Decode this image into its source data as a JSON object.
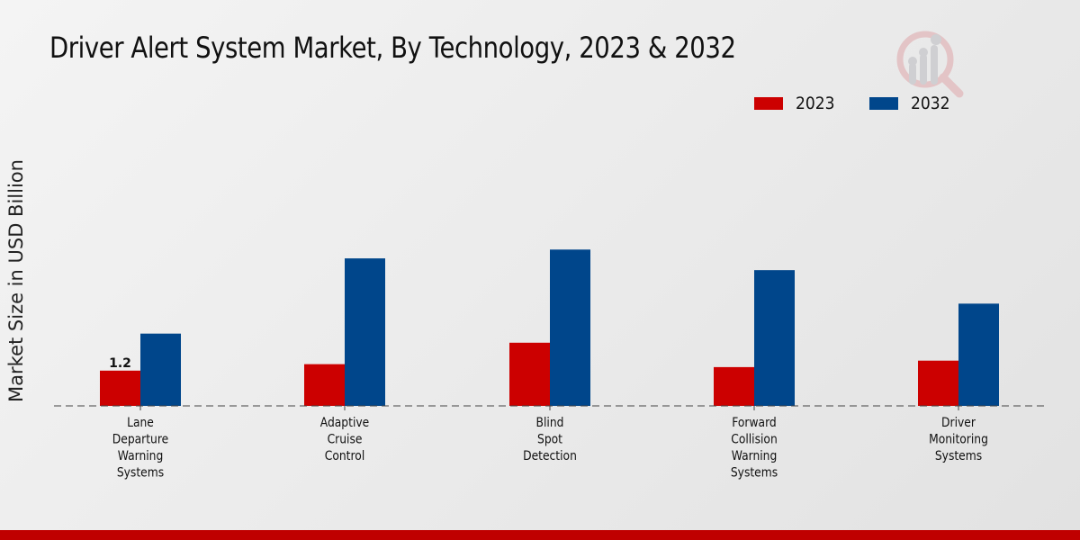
{
  "title": "Driver Alert System Market, By Technology, 2023 & 2032",
  "colors": {
    "series_2023": "#cc0000",
    "series_2032": "#00468b",
    "footer": "#bf0000"
  },
  "chart_data": {
    "type": "bar",
    "title": "Driver Alert System Market, By Technology, 2023 & 2032",
    "xlabel": "",
    "ylabel": "Market Size in USD Billion",
    "categories": [
      [
        "Lane",
        "Departure",
        "Warning",
        "Systems"
      ],
      [
        "Adaptive",
        "Cruise",
        "Control"
      ],
      [
        "Blind",
        "Spot",
        "Detection"
      ],
      [
        "Forward",
        "Collision",
        "Warning",
        "Systems"
      ],
      [
        "Driver",
        "Monitoring",
        "Systems"
      ]
    ],
    "category_names": [
      "Lane Departure Warning Systems",
      "Adaptive Cruise Control",
      "Blind Spot Detection",
      "Forward Collision Warning Systems",
      "Driver Monitoring Systems"
    ],
    "series": [
      {
        "name": "2023",
        "color": "#cc0000",
        "values": [
          1.2,
          1.42,
          2.15,
          1.32,
          1.54
        ]
      },
      {
        "name": "2032",
        "color": "#00468b",
        "values": [
          2.46,
          5.02,
          5.32,
          4.62,
          3.48
        ]
      }
    ],
    "data_labels": [
      {
        "series": 0,
        "index": 0,
        "text": "1.2"
      }
    ],
    "ylim": [
      0,
      8.3
    ],
    "grid": false,
    "legend": "top-right",
    "baseline_style": "dashed"
  }
}
